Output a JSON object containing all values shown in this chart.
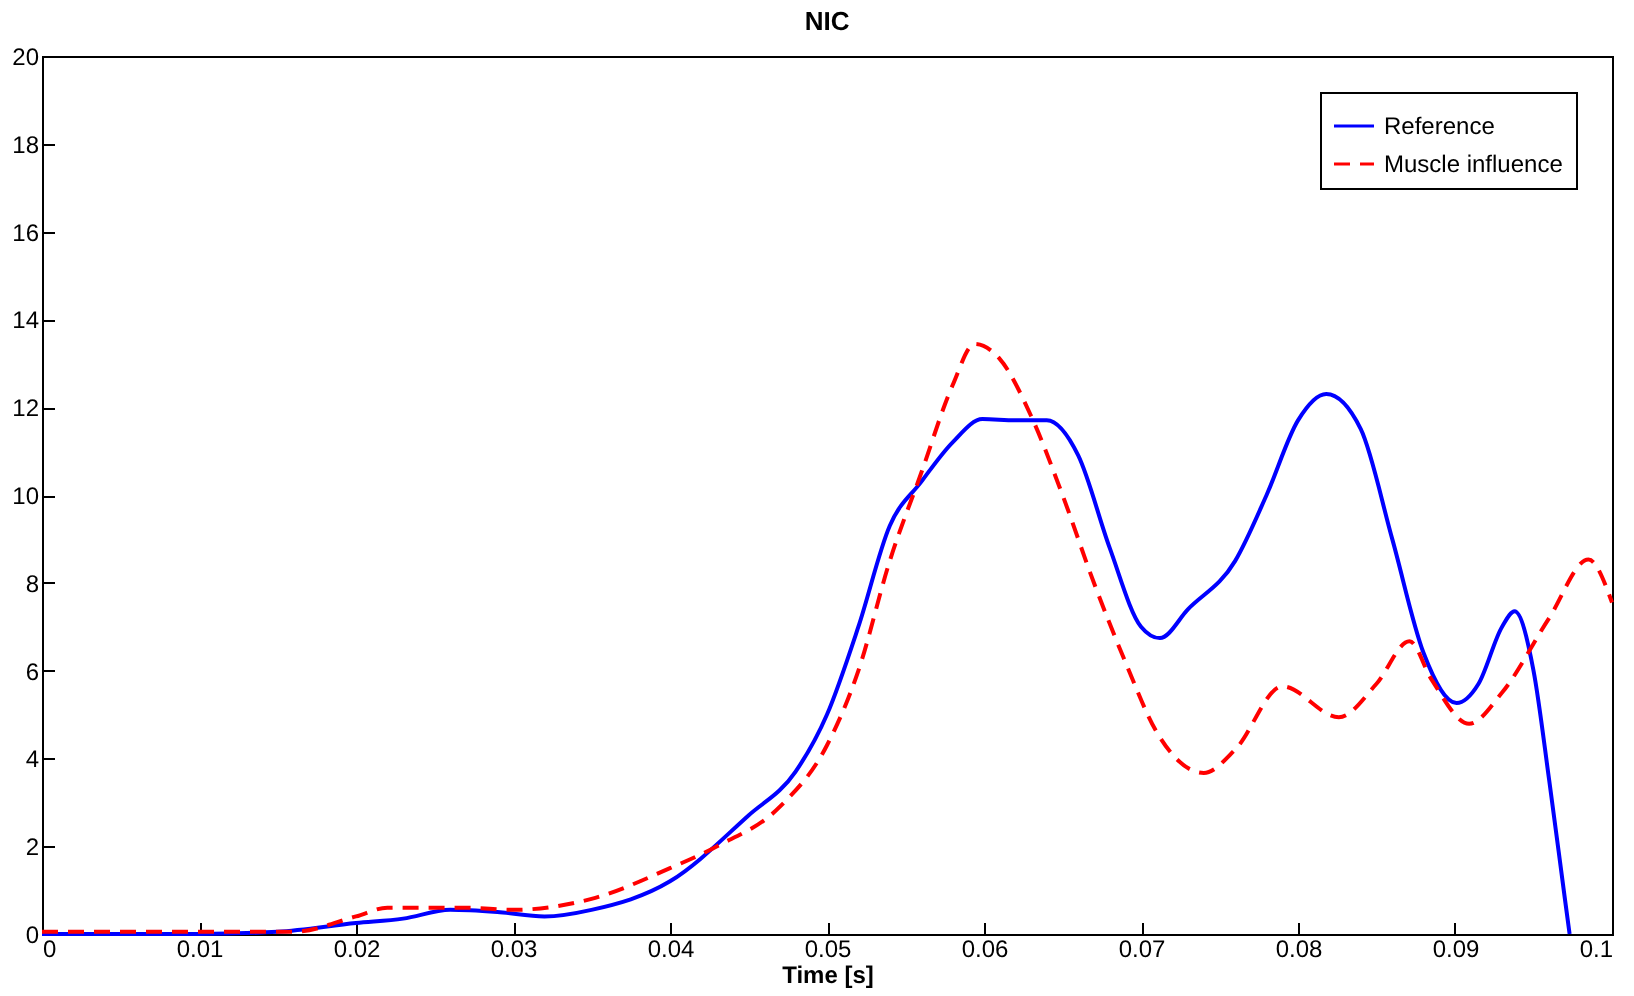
{
  "chart_data": {
    "type": "line",
    "title": "NIC",
    "xlabel": "Time [s]",
    "xlim": [
      0,
      0.1
    ],
    "xticks": [
      0,
      0.01,
      0.02,
      0.03,
      0.04,
      0.05,
      0.06,
      0.07,
      0.08,
      0.09,
      0.1
    ],
    "ylim": [
      0,
      20
    ],
    "yticks": [
      0,
      2,
      4,
      6,
      8,
      10,
      12,
      14,
      16,
      18,
      20
    ],
    "legend": "top right",
    "marker": "none",
    "series": [
      {
        "name": "Reference",
        "color": "#0000ff",
        "line_style": "solid",
        "x": [
          0,
          0.01,
          0.015,
          0.02,
          0.023,
          0.026,
          0.029,
          0.032,
          0.035,
          0.04,
          0.045,
          0.048,
          0.05,
          0.052,
          0.054,
          0.056,
          0.058,
          0.0599,
          0.062,
          0.064,
          0.066,
          0.068,
          0.07,
          0.0712,
          0.073,
          0.076,
          0.078,
          0.08,
          0.0818,
          0.084,
          0.086,
          0.088,
          0.0901,
          0.0915,
          0.093,
          0.0938,
          0.095,
          0.096,
          0.097,
          0.0973
        ],
        "values": [
          0,
          0,
          0.05,
          0.25,
          0.35,
          0.55,
          0.5,
          0.4,
          0.55,
          1.2,
          2.7,
          3.7,
          5.0,
          7.0,
          9.3,
          10.3,
          11.2,
          11.73,
          11.7,
          11.7,
          10.9,
          8.8,
          7.0,
          6.74,
          7.4,
          8.5,
          10.0,
          11.7,
          12.3,
          11.5,
          9.0,
          6.4,
          5.26,
          5.7,
          7.0,
          7.35,
          6.0,
          3.5,
          0.8,
          0
        ]
      },
      {
        "name": "Muscle influence",
        "color": "#ff0000",
        "line_style": "dashed",
        "x": [
          0,
          0.016,
          0.02,
          0.022,
          0.027,
          0.03,
          0.035,
          0.04,
          0.043,
          0.047,
          0.05,
          0.052,
          0.054,
          0.056,
          0.058,
          0.0594,
          0.061,
          0.063,
          0.065,
          0.067,
          0.069,
          0.071,
          0.074,
          0.076,
          0.079,
          0.0826,
          0.085,
          0.0871,
          0.0885,
          0.0909,
          0.093,
          0.096,
          0.0985,
          0.1
        ],
        "values": [
          0.05,
          0.05,
          0.4,
          0.6,
          0.6,
          0.55,
          0.8,
          1.5,
          2.0,
          2.9,
          4.3,
          6.0,
          8.5,
          10.5,
          12.5,
          13.44,
          13.1,
          11.8,
          10.0,
          8.0,
          6.2,
          4.6,
          3.67,
          4.2,
          5.64,
          4.94,
          5.7,
          6.67,
          5.8,
          4.79,
          5.5,
          7.2,
          8.53,
          7.55
        ]
      }
    ]
  }
}
